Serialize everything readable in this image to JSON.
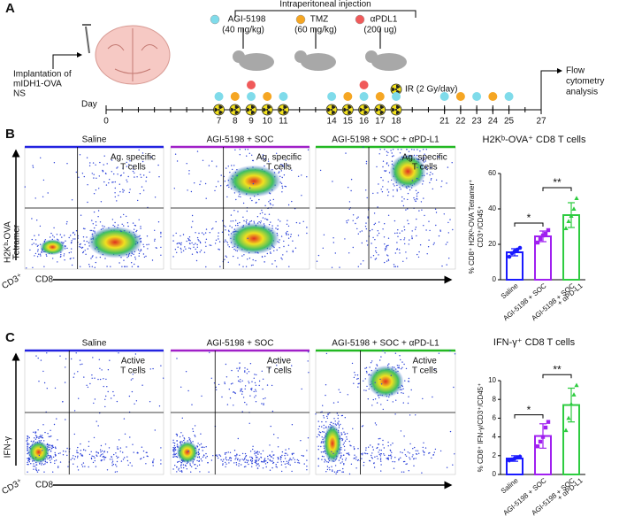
{
  "panel_a": {
    "letter": "A",
    "injection_title": "Intraperitoneal injection",
    "legend": [
      {
        "name": "AGI-5198",
        "dose": "(40 mg/kg)",
        "color": "#7fdbea"
      },
      {
        "name": "TMZ",
        "dose": "(60 mg/kg)",
        "color": "#f5a623"
      },
      {
        "name": "αPDL1",
        "dose": "(200 ug)",
        "color": "#f05a5a"
      }
    ],
    "ir_label": "IR (2 Gy/day)",
    "implantation": [
      "Implantation of",
      "mIDH1-OVA",
      "NS"
    ],
    "axis_label": "Day",
    "xlim": [
      0,
      27
    ],
    "xticks": [
      0,
      7,
      8,
      9,
      10,
      11,
      14,
      15,
      16,
      17,
      18,
      21,
      22,
      23,
      24,
      25,
      27
    ],
    "agi_days": [
      7,
      9,
      11,
      14,
      16,
      18,
      21,
      23,
      25
    ],
    "tmz_days": [
      8,
      10,
      15,
      17,
      22,
      24
    ],
    "apdl1_days": [
      9,
      16
    ],
    "ir_days": [
      7,
      8,
      9,
      10,
      11,
      14,
      15,
      16,
      17,
      18
    ],
    "end_label": [
      "Flow",
      "cytometry",
      "analysis"
    ]
  },
  "panel_b": {
    "letter": "B",
    "flow": {
      "groups": [
        "Saline",
        "AGI-5198 + SOC",
        "AGI-5198 + SOC + αPD-L1"
      ],
      "group_colors": [
        "#2323e0",
        "#a020c8",
        "#22b822"
      ],
      "gate_label": [
        "Ag. specific",
        "T cells"
      ],
      "y_label": [
        "H2Kᵇ-OVA",
        "Tetramer"
      ],
      "x_label": "CD8",
      "parent_label": "CD3⁺"
    },
    "chart": {
      "type": "bar",
      "title": "H2Kᵇ-OVA⁺ CD8 T cells",
      "y_label": [
        "% CD8⁺ H2Kᵇ-OVA Tetramer⁺",
        "CD3⁺/CD45⁺"
      ],
      "categories": [
        [
          "Saline"
        ],
        [
          "AGI-5198 + SOC"
        ],
        [
          "AGI-5198 + SOC",
          "+ αPD-L1"
        ]
      ],
      "colors": [
        "#1a1aff",
        "#a020f0",
        "#2ecc40"
      ],
      "values": [
        15.5,
        24.5,
        36.5
      ],
      "errors": [
        2,
        3,
        7
      ],
      "points": [
        [
          13,
          15,
          16,
          17,
          18
        ],
        [
          21,
          23,
          25,
          26,
          28
        ],
        [
          29,
          33,
          36,
          40,
          46
        ]
      ],
      "ylim": [
        0,
        60
      ],
      "yticks": [
        0,
        20,
        40,
        60
      ],
      "significance": [
        "*",
        "**"
      ]
    }
  },
  "panel_c": {
    "letter": "C",
    "flow": {
      "groups": [
        "Saline",
        "AGI-5198 + SOC",
        "AGI-5198 + SOC + αPD-L1"
      ],
      "group_colors": [
        "#2323e0",
        "#a020c8",
        "#22b822"
      ],
      "gate_label": [
        "Active",
        "T cells"
      ],
      "y_label": [
        "IFN-γ"
      ],
      "x_label": "CD8",
      "parent_label": "CD3⁺"
    },
    "chart": {
      "type": "bar",
      "title": "IFN-γ⁺ CD8 T cells",
      "y_label": [
        "% CD8⁺ IFN-γ/CD3⁺/CD45⁺"
      ],
      "categories": [
        [
          "Saline"
        ],
        [
          "AGI-5198 + SOC"
        ],
        [
          "AGI-5198 + SOC",
          "+ αPD-L1"
        ]
      ],
      "colors": [
        "#1a1aff",
        "#a020f0",
        "#2ecc40"
      ],
      "values": [
        1.7,
        4.1,
        7.4
      ],
      "errors": [
        0.3,
        1.3,
        1.8
      ],
      "points": [
        [
          1.5,
          1.6,
          1.7,
          1.8,
          1.9
        ],
        [
          3,
          3.5,
          4,
          5,
          5.6
        ],
        [
          4.7,
          6,
          7.5,
          8.5,
          9.5
        ]
      ],
      "ylim": [
        0,
        10
      ],
      "yticks": [
        0,
        2,
        4,
        6,
        8,
        10
      ],
      "significance": [
        "*",
        "**"
      ]
    }
  }
}
